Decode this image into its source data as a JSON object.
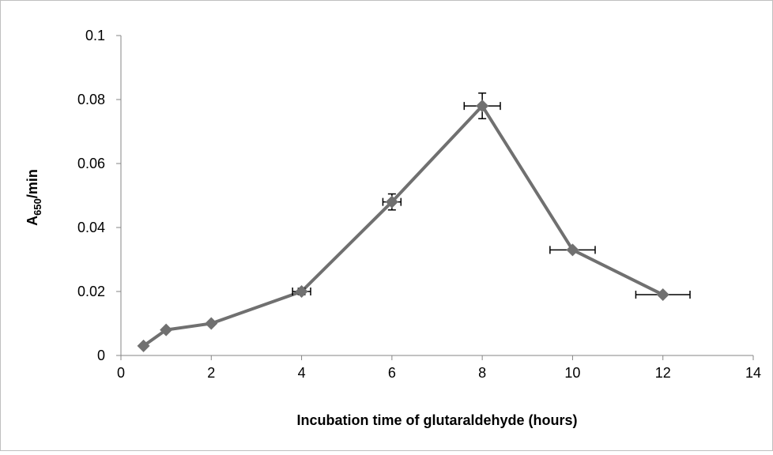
{
  "chart_data": {
    "type": "line",
    "x_label": "Incubation time of glutaraldehyde (hours)",
    "y_label": [
      "A",
      "650",
      "/min"
    ],
    "x": [
      0.5,
      1,
      2,
      4,
      6,
      8,
      10,
      12
    ],
    "series": [
      {
        "color": "#707070",
        "values": [
          0.003,
          0.008,
          0.01,
          0.02,
          0.048,
          0.078,
          0.033,
          0.019
        ],
        "y_err": [
          0,
          0,
          0,
          0.001,
          0.0025,
          0.004,
          0,
          0
        ],
        "x_err": [
          0,
          0,
          0,
          0.2,
          0.2,
          0.4,
          0.5,
          0.6
        ]
      }
    ],
    "xlim": [
      0,
      14
    ],
    "xticks": [
      0,
      2,
      4,
      6,
      8,
      10,
      12,
      14
    ],
    "ylim": [
      0,
      0.1
    ],
    "yticks": [
      0,
      0.02,
      0.04,
      0.06,
      0.08,
      0.1
    ]
  }
}
